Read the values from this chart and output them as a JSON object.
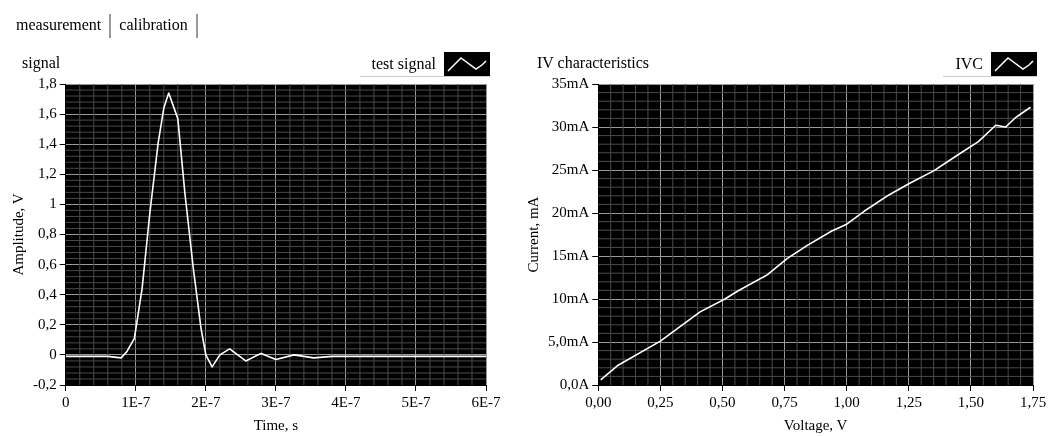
{
  "chart_data": [
    {
      "type": "line",
      "title": "signal",
      "xlabel": "Time, s",
      "ylabel": "Amplitude, V",
      "annotations": [
        "measurement",
        "calibration"
      ],
      "legend": "top right",
      "grid": true,
      "marker": "none",
      "line_style": "solid",
      "xlim": [
        0,
        6e-07
      ],
      "xticks": [
        0,
        {
          "value": 1e-07,
          "label": "1E-7"
        },
        {
          "value": 2e-07,
          "label": "2E-7"
        },
        {
          "value": 3e-07,
          "label": "3E-7"
        },
        {
          "value": 4e-07,
          "label": "4E-7"
        },
        {
          "value": 5e-07,
          "label": "5E-7"
        },
        {
          "value": 6e-07,
          "label": "6E-7"
        }
      ],
      "ylim": [
        -0.2,
        1.8
      ],
      "yticks": [
        {
          "value": -0.2,
          "label": "-0,2"
        },
        0,
        {
          "value": 0.2,
          "label": "0,2"
        },
        {
          "value": 0.4,
          "label": "0,4"
        },
        {
          "value": 0.6,
          "label": "0,6"
        },
        {
          "value": 0.8,
          "label": "0,8"
        },
        1,
        {
          "value": 1.2,
          "label": "1,2"
        },
        {
          "value": 1.4,
          "label": "1,4"
        },
        {
          "value": 1.6,
          "label": "1,6"
        },
        {
          "value": 1.8,
          "label": "1,8"
        }
      ],
      "series": [
        {
          "name": "test signal",
          "color": "#ffffff",
          "x": [
            0,
            2e-08,
            4e-08,
            6e-08,
            7.9e-08,
            8.7e-08,
            9.8e-08,
            1.09e-07,
            1.2e-07,
            1.32e-07,
            1.4e-07,
            1.47e-07,
            1.6e-07,
            1.7e-07,
            1.82e-07,
            1.93e-07,
            2e-07,
            2.09e-07,
            2.2e-07,
            2.34e-07,
            2.57e-07,
            2.79e-07,
            3e-07,
            3.26e-07,
            3.54e-07,
            3.8e-07,
            4.2e-07,
            4.6e-07,
            5e-07,
            5.4e-07,
            6e-07
          ],
          "values": [
            -0.01,
            -0.01,
            -0.01,
            -0.01,
            -0.02,
            0.02,
            0.11,
            0.44,
            0.94,
            1.41,
            1.64,
            1.74,
            1.57,
            1.08,
            0.58,
            0.18,
            0,
            -0.08,
            0,
            0.04,
            -0.04,
            0.01,
            -0.03,
            0,
            -0.02,
            -0.01,
            -0.01,
            -0.01,
            -0.01,
            -0.01,
            -0.01
          ]
        }
      ]
    },
    {
      "type": "line",
      "title": "IV characteristics",
      "xlabel": "Voltage, V",
      "ylabel": "Current, mA",
      "legend": "top right",
      "grid": true,
      "marker": "none",
      "line_style": "solid",
      "xlim": [
        0,
        1.75
      ],
      "xticks": [
        {
          "value": 0,
          "label": "0,00"
        },
        {
          "value": 0.25,
          "label": "0,25"
        },
        {
          "value": 0.5,
          "label": "0,50"
        },
        {
          "value": 0.75,
          "label": "0,75"
        },
        {
          "value": 1,
          "label": "1,00"
        },
        {
          "value": 1.25,
          "label": "1,25"
        },
        {
          "value": 1.5,
          "label": "1,50"
        },
        {
          "value": 1.75,
          "label": "1,75"
        }
      ],
      "ylim": [
        0,
        35
      ],
      "yticks": [
        {
          "value": 0,
          "label": "0,0A"
        },
        {
          "value": 5,
          "label": "5,0mA"
        },
        {
          "value": 10,
          "label": "10mA"
        },
        {
          "value": 15,
          "label": "15mA"
        },
        {
          "value": 20,
          "label": "20mA"
        },
        {
          "value": 25,
          "label": "25mA"
        },
        {
          "value": 30,
          "label": "30mA"
        },
        {
          "value": 35,
          "label": "35mA"
        }
      ],
      "series": [
        {
          "name": "IVC",
          "color": "#ffffff",
          "x": [
            0.01,
            0.08,
            0.25,
            0.41,
            0.51,
            0.56,
            0.68,
            0.76,
            0.84,
            0.94,
            1.0,
            1.07,
            1.17,
            1.25,
            1.35,
            1.45,
            1.53,
            1.6,
            1.64,
            1.68,
            1.74
          ],
          "values": [
            0.6,
            2.3,
            5.1,
            8.5,
            10,
            10.9,
            12.8,
            14.7,
            16.2,
            17.9,
            18.7,
            20.2,
            22.1,
            23.4,
            24.9,
            26.8,
            28.3,
            30.2,
            30,
            31.1,
            32.3
          ]
        }
      ]
    }
  ]
}
